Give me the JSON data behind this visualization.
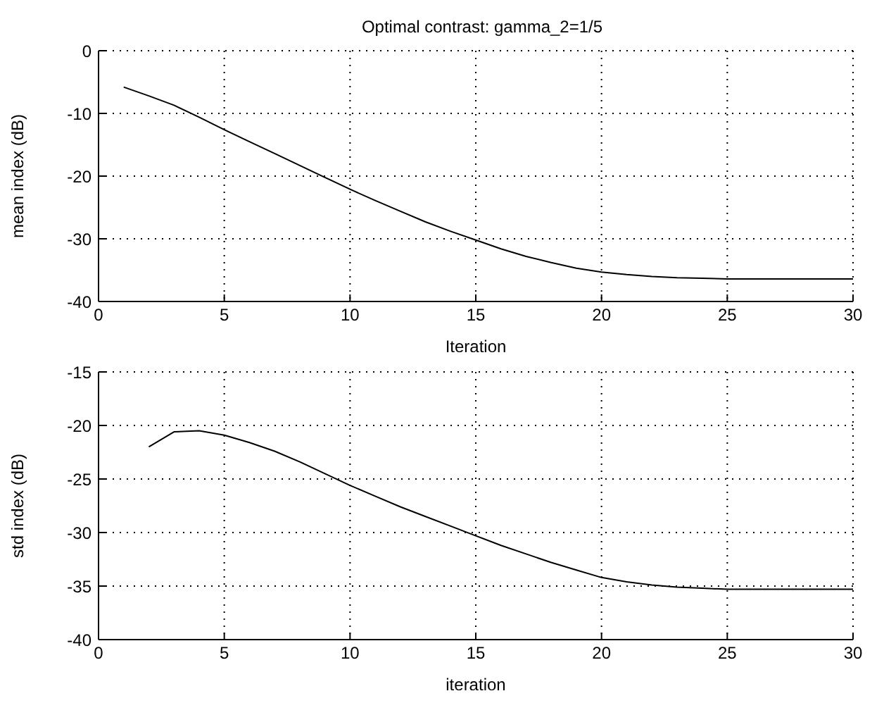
{
  "chart_data": [
    {
      "type": "line",
      "title": "Optimal contrast: gamma_2=1/5",
      "xlabel": "Iteration",
      "ylabel": "mean index (dB)",
      "xlim": [
        0,
        30
      ],
      "xticks": [
        0,
        5,
        10,
        15,
        20,
        25,
        30
      ],
      "ylim": [
        -40,
        0
      ],
      "yticks": [
        -40,
        -30,
        -20,
        -10,
        0
      ],
      "grid": true,
      "line_style": "solid",
      "series": [
        {
          "color": "#000000",
          "x": [
            1,
            2,
            3,
            4,
            5,
            6,
            7,
            8,
            9,
            10,
            11,
            12,
            13,
            14,
            15,
            16,
            17,
            18,
            19,
            20,
            21,
            22,
            23,
            24,
            25,
            26,
            27,
            28,
            29,
            30
          ],
          "values": [
            -5.8,
            -7.2,
            -8.7,
            -10.6,
            -12.6,
            -14.5,
            -16.4,
            -18.3,
            -20.2,
            -22.1,
            -23.9,
            -25.6,
            -27.3,
            -28.8,
            -30.2,
            -31.6,
            -32.8,
            -33.8,
            -34.7,
            -35.3,
            -35.7,
            -36.0,
            -36.2,
            -36.3,
            -36.4,
            -36.4,
            -36.4,
            -36.4,
            -36.4,
            -36.4
          ]
        }
      ]
    },
    {
      "type": "line",
      "xlabel": "iteration",
      "ylabel": "std index (dB)",
      "xlim": [
        0,
        30
      ],
      "xticks": [
        0,
        5,
        10,
        15,
        20,
        25,
        30
      ],
      "ylim": [
        -40,
        -15
      ],
      "yticks": [
        -40,
        -35,
        -30,
        -25,
        -20,
        -15
      ],
      "grid": true,
      "line_style": "solid",
      "series": [
        {
          "color": "#000000",
          "x": [
            2,
            3,
            4,
            5,
            6,
            7,
            8,
            9,
            10,
            11,
            12,
            13,
            14,
            15,
            16,
            17,
            18,
            19,
            20,
            21,
            22,
            23,
            24,
            25,
            26,
            27,
            28,
            29,
            30
          ],
          "values": [
            -22.0,
            -20.6,
            -20.5,
            -20.9,
            -21.6,
            -22.4,
            -23.4,
            -24.5,
            -25.6,
            -26.6,
            -27.6,
            -28.5,
            -29.4,
            -30.3,
            -31.2,
            -32.0,
            -32.8,
            -33.5,
            -34.2,
            -34.6,
            -34.9,
            -35.1,
            -35.2,
            -35.3,
            -35.3,
            -35.3,
            -35.3,
            -35.3,
            -35.3
          ]
        }
      ]
    }
  ]
}
